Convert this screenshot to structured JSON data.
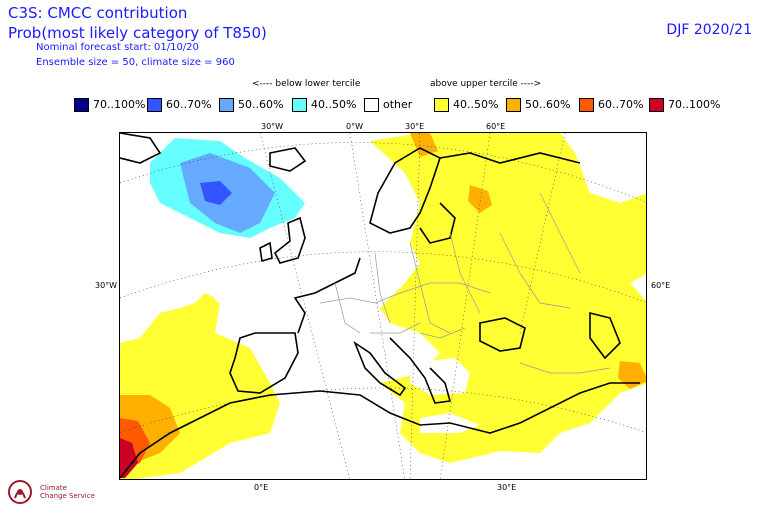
{
  "header": {
    "title_line1": "C3S: CMCC contribution",
    "title_line2": "Prob(most likely category of T850)",
    "forecast_start": "Nominal forecast start: 01/10/20",
    "ensemble_info": "Ensemble size = 50, climate size = 960",
    "season": "DJF 2020/21"
  },
  "legend": {
    "below_hint": "<---- below lower tercile",
    "above_hint": "above upper tercile ---->",
    "items": [
      {
        "label": "70..100%",
        "color": "#00008b"
      },
      {
        "label": "60..70%",
        "color": "#3355ff"
      },
      {
        "label": "50..60%",
        "color": "#66aaff"
      },
      {
        "label": "40..50%",
        "color": "#66ffff"
      },
      {
        "label": "other",
        "color": "#ffffff"
      },
      {
        "label": "40..50%",
        "color": "#ffff33"
      },
      {
        "label": "50..60%",
        "color": "#ffb000"
      },
      {
        "label": "60..70%",
        "color": "#ff5a00"
      },
      {
        "label": "70..100%",
        "color": "#cc0022"
      }
    ]
  },
  "map": {
    "labels": {
      "top_30w": "30°W",
      "top_0": "0°W",
      "top_30e": "30°E",
      "top_60e": "60°E",
      "left_30w": "30°W",
      "right_60e": "60°E",
      "bottom_0": "0°E",
      "bottom_30e": "30°E"
    },
    "regions": {
      "lower_tercile": "below lower tercile",
      "upper_tercile": "above upper tercile"
    }
  },
  "logo": {
    "org_line1": "Climate",
    "org_line2": "Change Service"
  }
}
